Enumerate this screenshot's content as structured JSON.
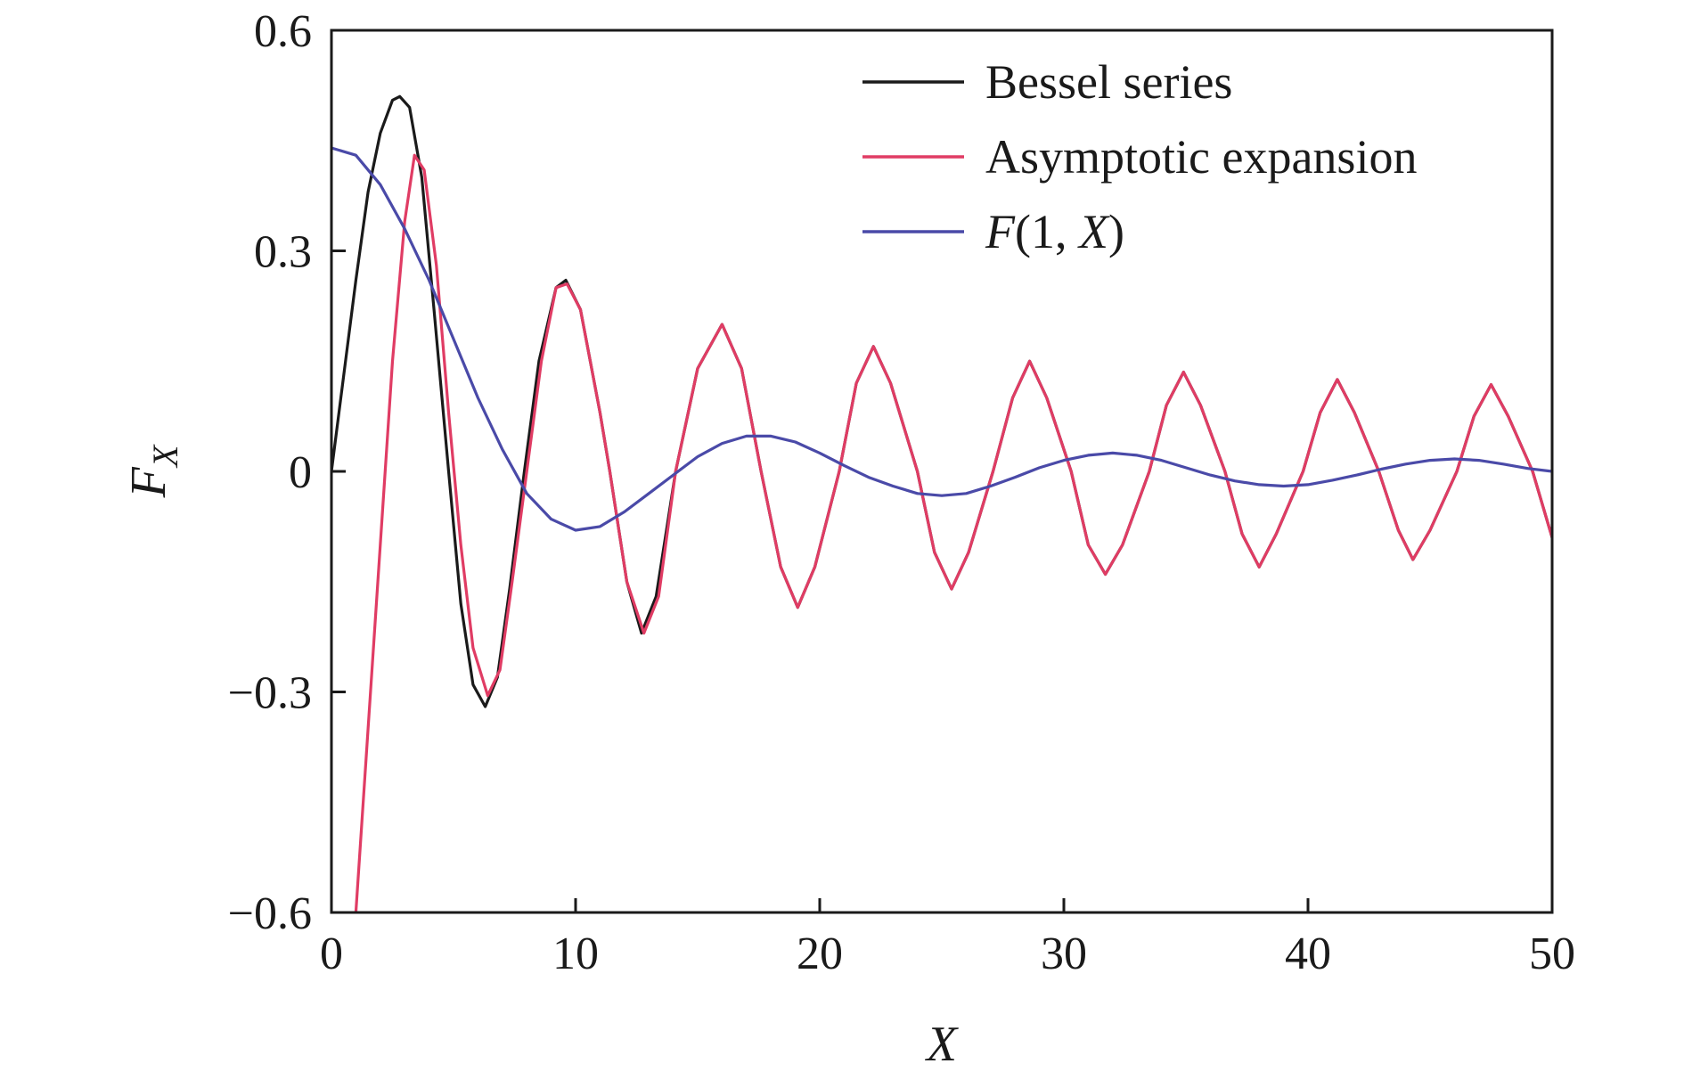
{
  "chart_data": {
    "type": "line",
    "title": "",
    "xlabel": "X",
    "ylabel": {
      "main": "F",
      "sub": "X"
    },
    "xlim": [
      0,
      50
    ],
    "ylim": [
      -0.6,
      0.6
    ],
    "xticks": [
      0,
      10,
      20,
      30,
      40,
      50
    ],
    "xtick_labels": [
      "0",
      "10",
      "20",
      "30",
      "40",
      "50"
    ],
    "yticks": [
      -0.6,
      -0.3,
      0,
      0.3,
      0.6
    ],
    "ytick_labels": [
      "−0.6",
      "−0.3",
      "0",
      "0.3",
      "0.6"
    ],
    "grid": false,
    "legend_position": "top-right",
    "series": [
      {
        "name": "Bessel series",
        "color": "#1a1a1a",
        "points": [
          [
            0,
            0
          ],
          [
            0.5,
            0.13
          ],
          [
            1,
            0.26
          ],
          [
            1.5,
            0.38
          ],
          [
            2,
            0.46
          ],
          [
            2.5,
            0.505
          ],
          [
            2.8,
            0.51
          ],
          [
            3.2,
            0.495
          ],
          [
            3.7,
            0.4
          ],
          [
            4.2,
            0.22
          ],
          [
            4.8,
            0
          ],
          [
            5.3,
            -0.18
          ],
          [
            5.8,
            -0.29
          ],
          [
            6.3,
            -0.32
          ],
          [
            6.8,
            -0.28
          ],
          [
            7.3,
            -0.16
          ],
          [
            7.9,
            0
          ],
          [
            8.5,
            0.15
          ],
          [
            9.2,
            0.25
          ],
          [
            9.6,
            0.26
          ],
          [
            10.2,
            0.22
          ],
          [
            11,
            0.08
          ],
          [
            11.4,
            0
          ],
          [
            12.1,
            -0.15
          ],
          [
            12.7,
            -0.22
          ],
          [
            13.3,
            -0.17
          ],
          [
            14.1,
            0
          ],
          [
            15,
            0.14
          ],
          [
            16,
            0.2
          ],
          [
            16.8,
            0.14
          ],
          [
            17.6,
            0
          ],
          [
            18.4,
            -0.13
          ],
          [
            19.1,
            -0.185
          ],
          [
            19.8,
            -0.13
          ],
          [
            20.8,
            0
          ],
          [
            21.5,
            0.12
          ],
          [
            22.2,
            0.17
          ],
          [
            22.9,
            0.12
          ],
          [
            24,
            0
          ],
          [
            24.7,
            -0.11
          ],
          [
            25.4,
            -0.16
          ],
          [
            26.1,
            -0.11
          ],
          [
            27.1,
            0
          ],
          [
            27.9,
            0.1
          ],
          [
            28.6,
            0.15
          ],
          [
            29.3,
            0.1
          ],
          [
            30.3,
            0
          ],
          [
            31,
            -0.1
          ],
          [
            31.7,
            -0.14
          ],
          [
            32.4,
            -0.1
          ],
          [
            33.5,
            0
          ],
          [
            34.2,
            0.09
          ],
          [
            34.9,
            0.135
          ],
          [
            35.6,
            0.09
          ],
          [
            36.6,
            0
          ],
          [
            37.3,
            -0.085
          ],
          [
            38,
            -0.13
          ],
          [
            38.7,
            -0.085
          ],
          [
            39.8,
            0
          ],
          [
            40.5,
            0.08
          ],
          [
            41.2,
            0.125
          ],
          [
            41.9,
            0.08
          ],
          [
            42.9,
            0
          ],
          [
            43.7,
            -0.08
          ],
          [
            44.3,
            -0.12
          ],
          [
            45,
            -0.08
          ],
          [
            46.1,
            0
          ],
          [
            46.8,
            0.075
          ],
          [
            47.5,
            0.118
          ],
          [
            48.2,
            0.075
          ],
          [
            49.2,
            0
          ],
          [
            50,
            -0.09
          ]
        ]
      },
      {
        "name": "Asymptotic expansion",
        "color": "#e03c64",
        "points": [
          [
            1,
            -0.6
          ],
          [
            1.5,
            -0.35
          ],
          [
            2,
            -0.1
          ],
          [
            2.5,
            0.15
          ],
          [
            3,
            0.34
          ],
          [
            3.4,
            0.43
          ],
          [
            3.8,
            0.41
          ],
          [
            4.3,
            0.28
          ],
          [
            4.8,
            0.08
          ],
          [
            5.3,
            -0.1
          ],
          [
            5.8,
            -0.24
          ],
          [
            6.4,
            -0.305
          ],
          [
            6.9,
            -0.27
          ],
          [
            7.4,
            -0.15
          ],
          [
            8,
            0
          ],
          [
            8.6,
            0.15
          ],
          [
            9.2,
            0.25
          ],
          [
            9.65,
            0.255
          ],
          [
            10.2,
            0.22
          ],
          [
            11,
            0.08
          ],
          [
            11.4,
            0
          ],
          [
            12.1,
            -0.15
          ],
          [
            12.8,
            -0.22
          ],
          [
            13.4,
            -0.17
          ],
          [
            14.1,
            0
          ],
          [
            15,
            0.14
          ],
          [
            16,
            0.2
          ],
          [
            16.8,
            0.14
          ],
          [
            17.6,
            0
          ],
          [
            18.4,
            -0.13
          ],
          [
            19.1,
            -0.185
          ],
          [
            19.8,
            -0.13
          ],
          [
            20.8,
            0
          ],
          [
            21.5,
            0.12
          ],
          [
            22.2,
            0.17
          ],
          [
            22.9,
            0.12
          ],
          [
            24,
            0
          ],
          [
            24.7,
            -0.11
          ],
          [
            25.4,
            -0.16
          ],
          [
            26.1,
            -0.11
          ],
          [
            27.1,
            0
          ],
          [
            27.9,
            0.1
          ],
          [
            28.6,
            0.15
          ],
          [
            29.3,
            0.1
          ],
          [
            30.3,
            0
          ],
          [
            31,
            -0.1
          ],
          [
            31.7,
            -0.14
          ],
          [
            32.4,
            -0.1
          ],
          [
            33.5,
            0
          ],
          [
            34.2,
            0.09
          ],
          [
            34.9,
            0.135
          ],
          [
            35.6,
            0.09
          ],
          [
            36.6,
            0
          ],
          [
            37.3,
            -0.085
          ],
          [
            38,
            -0.13
          ],
          [
            38.7,
            -0.085
          ],
          [
            39.8,
            0
          ],
          [
            40.5,
            0.08
          ],
          [
            41.2,
            0.125
          ],
          [
            41.9,
            0.08
          ],
          [
            42.9,
            0
          ],
          [
            43.7,
            -0.08
          ],
          [
            44.3,
            -0.12
          ],
          [
            45,
            -0.08
          ],
          [
            46.1,
            0
          ],
          [
            46.8,
            0.075
          ],
          [
            47.5,
            0.118
          ],
          [
            48.2,
            0.075
          ],
          [
            49.2,
            0
          ],
          [
            50,
            -0.09
          ]
        ]
      },
      {
        "name": "F(1, X)",
        "color": "#4a4aa8",
        "points": [
          [
            0,
            0.44
          ],
          [
            1,
            0.43
          ],
          [
            2,
            0.39
          ],
          [
            3,
            0.33
          ],
          [
            4,
            0.26
          ],
          [
            5,
            0.18
          ],
          [
            6,
            0.1
          ],
          [
            7,
            0.03
          ],
          [
            8,
            -0.03
          ],
          [
            9,
            -0.065
          ],
          [
            10,
            -0.08
          ],
          [
            11,
            -0.075
          ],
          [
            12,
            -0.055
          ],
          [
            13,
            -0.03
          ],
          [
            14,
            -0.005
          ],
          [
            15,
            0.02
          ],
          [
            16,
            0.038
          ],
          [
            17,
            0.048
          ],
          [
            18,
            0.048
          ],
          [
            19,
            0.04
          ],
          [
            20,
            0.025
          ],
          [
            21,
            0.008
          ],
          [
            22,
            -0.008
          ],
          [
            23,
            -0.02
          ],
          [
            24,
            -0.03
          ],
          [
            25,
            -0.033
          ],
          [
            26,
            -0.03
          ],
          [
            27,
            -0.02
          ],
          [
            28,
            -0.008
          ],
          [
            29,
            0.005
          ],
          [
            30,
            0.015
          ],
          [
            31,
            0.022
          ],
          [
            32,
            0.025
          ],
          [
            33,
            0.022
          ],
          [
            34,
            0.015
          ],
          [
            35,
            0.005
          ],
          [
            36,
            -0.005
          ],
          [
            37,
            -0.013
          ],
          [
            38,
            -0.018
          ],
          [
            39,
            -0.02
          ],
          [
            40,
            -0.018
          ],
          [
            41,
            -0.012
          ],
          [
            42,
            -0.005
          ],
          [
            43,
            0.003
          ],
          [
            44,
            0.01
          ],
          [
            45,
            0.015
          ],
          [
            46,
            0.017
          ],
          [
            47,
            0.015
          ],
          [
            48,
            0.01
          ],
          [
            49,
            0.004
          ],
          [
            50,
            0
          ]
        ]
      }
    ]
  }
}
